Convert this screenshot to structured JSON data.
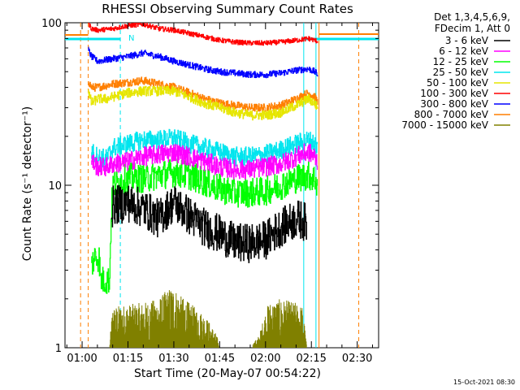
{
  "chart_data": {
    "type": "line",
    "title": "RHESSI Observing Summary Count Rates",
    "xlabel": "Start Time (20-May-07 00:54:22)",
    "ylabel": "Count Rate (s⁻¹ detector⁻¹)",
    "yscale": "log",
    "ylim": [
      1,
      100
    ],
    "xlim_min": [
      54.4,
      157
    ],
    "x_ticks": [
      {
        "min": 60,
        "label": "01:00"
      },
      {
        "min": 75,
        "label": "01:15"
      },
      {
        "min": 90,
        "label": "01:30"
      },
      {
        "min": 105,
        "label": "01:45"
      },
      {
        "min": 120,
        "label": "02:00"
      },
      {
        "min": 135,
        "label": "02:15"
      },
      {
        "min": 150,
        "label": "02:30"
      }
    ],
    "y_ticks": [
      {
        "value": 1,
        "label": "1"
      },
      {
        "value": 10,
        "label": "10"
      },
      {
        "value": 100,
        "label": "100"
      }
    ],
    "legend_header": [
      "Det 1,3,4,5,6,9,",
      "FDecim 1, Att 0"
    ],
    "vlines": [
      {
        "min": 59.5,
        "color": "#ff7f00",
        "style": "dashed"
      },
      {
        "min": 62.0,
        "color": "#ff7f00",
        "style": "dashed"
      },
      {
        "min": 72.5,
        "color": "#00e5ee",
        "style": "dashed"
      },
      {
        "min": 132.5,
        "color": "#00e5ee",
        "style": "solid"
      },
      {
        "min": 136.5,
        "color": "#00e5ee",
        "style": "solid"
      },
      {
        "min": 137.5,
        "color": "#ff7f00",
        "style": "solid"
      },
      {
        "min": 150.5,
        "color": "#ff7f00",
        "style": "dashed"
      }
    ],
    "flag_label": "N",
    "series": [
      {
        "name": "3 - 6 keV",
        "color": "#000000",
        "x": [
          69.5,
          70,
          75,
          80,
          85,
          90,
          95,
          100,
          105,
          110,
          115,
          120,
          125,
          130,
          132,
          133.5
        ],
        "y": [
          6.3,
          7.5,
          7.8,
          7.2,
          6.2,
          7.8,
          6.5,
          5.5,
          5.0,
          4.4,
          4.4,
          4.6,
          5.5,
          6.2,
          6.1,
          5.8
        ],
        "noise": 0.12
      },
      {
        "name": "6 - 12 keV",
        "color": "#ff00ff",
        "x": [
          63,
          65,
          68,
          70,
          75,
          80,
          85,
          90,
          95,
          100,
          105,
          110,
          115,
          120,
          125,
          130,
          134,
          136,
          137
        ],
        "y": [
          14,
          13,
          13,
          13.5,
          14,
          15,
          15.5,
          16,
          15,
          14,
          13,
          12.5,
          12.5,
          13,
          13.5,
          15,
          16,
          15,
          14
        ],
        "noise": 0.06
      },
      {
        "name": "12 - 25 keV",
        "color": "#00ff00",
        "x": [
          63,
          64,
          65.5,
          66,
          69,
          70,
          75,
          80,
          85,
          90,
          95,
          100,
          105,
          110,
          115,
          120,
          125,
          130,
          134,
          136,
          137
        ],
        "y": [
          3.2,
          3.6,
          3.6,
          2.6,
          2.6,
          10,
          11.2,
          11,
          11.5,
          12,
          11.5,
          10.5,
          9.5,
          9,
          9,
          9.2,
          10,
          11,
          11.5,
          11,
          10
        ],
        "noise": 0.09
      },
      {
        "name": "25 - 50 keV",
        "color": "#00e5ee",
        "x": [
          63,
          65,
          68,
          70,
          75,
          80,
          85,
          90,
          95,
          100,
          105,
          110,
          115,
          120,
          125,
          130,
          134,
          136,
          137
        ],
        "y": [
          16,
          15,
          14.5,
          17,
          18,
          19,
          19,
          19.5,
          18,
          17,
          16,
          15,
          15,
          15.5,
          16.5,
          18,
          19,
          18,
          17
        ],
        "noise": 0.06
      },
      {
        "name": "50 - 100 keV",
        "color": "#e6e600",
        "x": [
          62,
          63,
          65,
          68,
          70,
          75,
          80,
          85,
          90,
          95,
          100,
          105,
          110,
          115,
          120,
          125,
          130,
          134,
          136,
          137
        ],
        "y": [
          38,
          32,
          34,
          34,
          35,
          37,
          38,
          38,
          38,
          35,
          32,
          30,
          28,
          27,
          27,
          28,
          31,
          34,
          32,
          30
        ],
        "noise": 0.03
      },
      {
        "name": "100 - 300 keV",
        "color": "#ff0000",
        "x": [
          62,
          63,
          65,
          70,
          75,
          80,
          85,
          90,
          95,
          100,
          105,
          110,
          115,
          120,
          125,
          130,
          132,
          134,
          136,
          137
        ],
        "y": [
          100,
          92,
          90,
          92,
          96,
          98,
          92,
          90,
          86,
          82,
          78,
          76,
          75,
          75,
          76,
          78,
          79,
          80,
          78,
          77
        ],
        "noise": 0.015
      },
      {
        "name": "300 - 800 keV",
        "color": "#0000ff",
        "x": [
          62,
          63,
          65,
          70,
          75,
          80,
          85,
          90,
          95,
          100,
          105,
          110,
          115,
          120,
          125,
          130,
          134,
          136,
          137
        ],
        "y": [
          68,
          62,
          58,
          60,
          62,
          65,
          62,
          58,
          55,
          52,
          50,
          49,
          48,
          48,
          49,
          51,
          52,
          50,
          48
        ],
        "noise": 0.02
      },
      {
        "name": "800 - 7000 keV",
        "color": "#ff7f00",
        "x": [
          62,
          63,
          65,
          70,
          75,
          80,
          85,
          90,
          95,
          100,
          105,
          110,
          115,
          120,
          125,
          130,
          134,
          136,
          137
        ],
        "y": [
          44,
          40,
          40,
          42,
          43,
          44,
          42,
          40,
          37,
          34,
          32,
          31,
          30,
          30,
          31,
          34,
          37,
          35,
          33
        ],
        "noise": 0.025
      },
      {
        "name": "7000 - 15000 keV",
        "color": "#808000",
        "x": [
          69,
          70,
          80,
          85,
          88,
          90,
          92,
          95,
          100,
          104,
          105,
          115,
          118,
          121,
          125,
          130,
          132,
          133.5
        ],
        "y": [
          1.0,
          1.8,
          1.9,
          2.0,
          2.3,
          2.4,
          2.1,
          1.9,
          1.6,
          1.2,
          1.0,
          1.0,
          1.2,
          1.9,
          2.0,
          1.9,
          1.8,
          1.0
        ],
        "noise": 0.0
      }
    ]
  },
  "timestamp": "15-Oct-2021 08:30"
}
